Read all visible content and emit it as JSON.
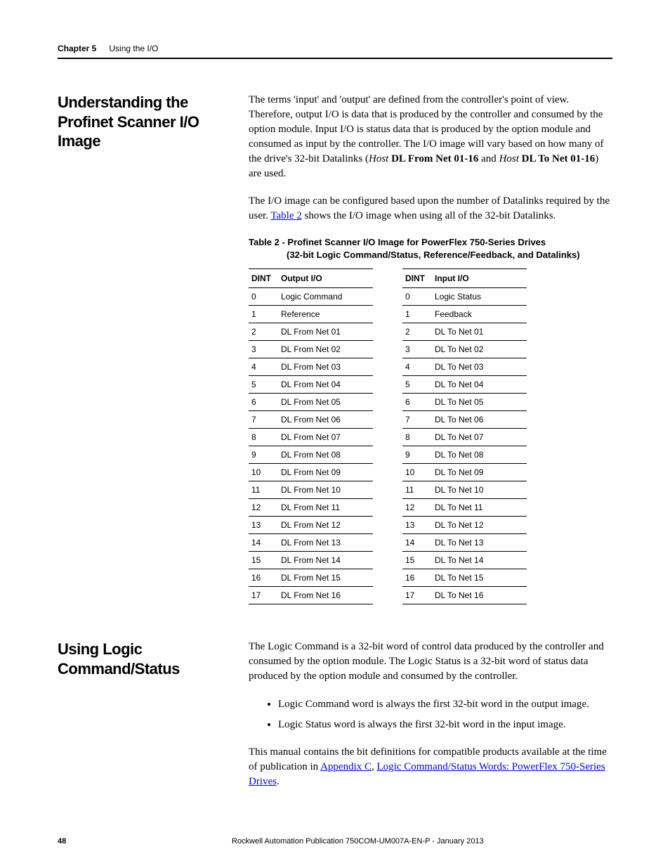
{
  "header": {
    "chapter_label": "Chapter 5",
    "chapter_title": "Using the I/O"
  },
  "section1": {
    "heading": "Understanding the Profinet Scanner I/O Image",
    "para1_pre": "The terms 'input' and 'output' are defined from the controller's point of view. Therefore, output I/O is data that is produced by the controller and consumed by the option module. Input I/O is status data that is produced by the option module and consumed as input by the controller. The I/O image will vary based on how many of the drive's 32-bit Datalinks (",
    "para1_host1_italic": "Host",
    "para1_bold1": " DL From Net 01-16",
    "para1_mid": " and ",
    "para1_host2_italic": "Host",
    "para1_bold2": " DL To Net 01-16",
    "para1_post": ") are used.",
    "para2_pre": "The I/O image can be configured based upon the number of Datalinks required by the user. ",
    "para2_link": "Table 2",
    "para2_post": " shows the I/O image when using all of the 32-bit Datalinks.",
    "table_title_line1": "Table 2 - Profinet Scanner I/O Image for PowerFlex 750-Series Drives",
    "table_title_line2": "(32-bit Logic Command/Status, Reference/Feedback, and Datalinks)",
    "output_table": {
      "header_dint": "DINT",
      "header_val": "Output I/O",
      "rows": [
        {
          "dint": "0",
          "val": "Logic Command"
        },
        {
          "dint": "1",
          "val": "Reference"
        },
        {
          "dint": "2",
          "val": "DL From Net 01"
        },
        {
          "dint": "3",
          "val": "DL From Net 02"
        },
        {
          "dint": "4",
          "val": "DL From Net 03"
        },
        {
          "dint": "5",
          "val": "DL From Net 04"
        },
        {
          "dint": "6",
          "val": "DL From Net 05"
        },
        {
          "dint": "7",
          "val": "DL From Net 06"
        },
        {
          "dint": "8",
          "val": "DL From Net 07"
        },
        {
          "dint": "9",
          "val": "DL From Net 08"
        },
        {
          "dint": "10",
          "val": "DL From Net 09"
        },
        {
          "dint": "11",
          "val": "DL From Net 10"
        },
        {
          "dint": "12",
          "val": "DL From Net 11"
        },
        {
          "dint": "13",
          "val": "DL From Net 12"
        },
        {
          "dint": "14",
          "val": "DL From Net 13"
        },
        {
          "dint": "15",
          "val": "DL From Net 14"
        },
        {
          "dint": "16",
          "val": "DL From Net 15"
        },
        {
          "dint": "17",
          "val": "DL From Net 16"
        }
      ]
    },
    "input_table": {
      "header_dint": "DINT",
      "header_val": "Input I/O",
      "rows": [
        {
          "dint": "0",
          "val": "Logic Status"
        },
        {
          "dint": "1",
          "val": "Feedback"
        },
        {
          "dint": "2",
          "val": "DL To Net 01"
        },
        {
          "dint": "3",
          "val": "DL To Net 02"
        },
        {
          "dint": "4",
          "val": "DL To Net 03"
        },
        {
          "dint": "5",
          "val": "DL To Net 04"
        },
        {
          "dint": "6",
          "val": "DL To Net 05"
        },
        {
          "dint": "7",
          "val": "DL To Net 06"
        },
        {
          "dint": "8",
          "val": "DL To Net 07"
        },
        {
          "dint": "9",
          "val": "DL To Net 08"
        },
        {
          "dint": "10",
          "val": "DL To Net 09"
        },
        {
          "dint": "11",
          "val": "DL To Net 10"
        },
        {
          "dint": "12",
          "val": "DL To Net 11"
        },
        {
          "dint": "13",
          "val": "DL To Net 12"
        },
        {
          "dint": "14",
          "val": "DL To Net 13"
        },
        {
          "dint": "15",
          "val": "DL To Net 14"
        },
        {
          "dint": "16",
          "val": "DL To Net 15"
        },
        {
          "dint": "17",
          "val": "DL To Net 16"
        }
      ]
    }
  },
  "section2": {
    "heading": "Using Logic Command/Status",
    "para1": "The Logic Command is a 32-bit word of control data produced by the controller and consumed by the option module. The Logic Status is a 32-bit word of status data produced by the option module and consumed by the controller.",
    "bullet1": "Logic Command word is always the first 32-bit word in the output image.",
    "bullet2": "Logic Status word is always the first 32-bit word in the input image.",
    "para2_pre": "This manual contains the bit definitions for compatible products available at the time of publication in ",
    "para2_link1": "Appendix C",
    "para2_mid": ", ",
    "para2_link2": "Logic Command/Status Words: PowerFlex 750-Series Drives",
    "para2_post": "."
  },
  "footer": {
    "pagenum": "48",
    "pubinfo": "Rockwell Automation Publication 750COM-UM007A-EN-P - January 2013"
  }
}
